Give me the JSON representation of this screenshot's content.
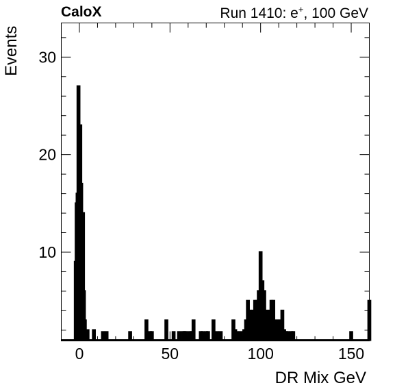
{
  "header": {
    "left_label": "CaloX",
    "right_label_prefix": "Run 1410: e",
    "right_label_sup": "+",
    "right_label_suffix": ", 100 GeV"
  },
  "chart_data": {
    "type": "bar",
    "xlabel": "DR Mix GeV",
    "ylabel": "Events",
    "xlim": [
      -10,
      160
    ],
    "ylim": [
      0.9,
      33.5
    ],
    "x_ticks": [
      0,
      50,
      100,
      150
    ],
    "y_ticks": [
      10,
      20,
      30
    ],
    "bins": [
      {
        "x": -2,
        "y": 9
      },
      {
        "x": -1.5,
        "y": 15
      },
      {
        "x": -1,
        "y": 16
      },
      {
        "x": -0.5,
        "y": 27
      },
      {
        "x": 0,
        "y": 14
      },
      {
        "x": 0.5,
        "y": 23
      },
      {
        "x": 1,
        "y": 17
      },
      {
        "x": 1.5,
        "y": 12
      },
      {
        "x": 2,
        "y": 14
      },
      {
        "x": 2.5,
        "y": 6
      },
      {
        "x": 3,
        "y": 3
      },
      {
        "x": 4.5,
        "y": 2
      },
      {
        "x": 8,
        "y": 2
      },
      {
        "x": 13,
        "y": 1.8
      },
      {
        "x": 15,
        "y": 1.8
      },
      {
        "x": 28,
        "y": 1.8
      },
      {
        "x": 37,
        "y": 3
      },
      {
        "x": 39,
        "y": 1.8
      },
      {
        "x": 40,
        "y": 1.8
      },
      {
        "x": 48,
        "y": 3
      },
      {
        "x": 52,
        "y": 1.8
      },
      {
        "x": 55,
        "y": 1.8
      },
      {
        "x": 57,
        "y": 1.8
      },
      {
        "x": 58,
        "y": 1.8
      },
      {
        "x": 59,
        "y": 1.8
      },
      {
        "x": 61,
        "y": 1.8
      },
      {
        "x": 62,
        "y": 1.8
      },
      {
        "x": 63,
        "y": 3
      },
      {
        "x": 67,
        "y": 1.8
      },
      {
        "x": 68,
        "y": 1.8
      },
      {
        "x": 70,
        "y": 1.8
      },
      {
        "x": 71,
        "y": 1.8
      },
      {
        "x": 74,
        "y": 3
      },
      {
        "x": 76,
        "y": 1.8
      },
      {
        "x": 78,
        "y": 1.8
      },
      {
        "x": 85,
        "y": 3
      },
      {
        "x": 86,
        "y": 2
      },
      {
        "x": 87,
        "y": 1.8
      },
      {
        "x": 89,
        "y": 1.8
      },
      {
        "x": 91,
        "y": 2
      },
      {
        "x": 92,
        "y": 3
      },
      {
        "x": 93,
        "y": 5
      },
      {
        "x": 94,
        "y": 4
      },
      {
        "x": 95,
        "y": 3
      },
      {
        "x": 96,
        "y": 4
      },
      {
        "x": 97,
        "y": 5
      },
      {
        "x": 98,
        "y": 5
      },
      {
        "x": 99,
        "y": 6
      },
      {
        "x": 100,
        "y": 10
      },
      {
        "x": 101,
        "y": 7
      },
      {
        "x": 102,
        "y": 6
      },
      {
        "x": 103,
        "y": 3
      },
      {
        "x": 104,
        "y": 4
      },
      {
        "x": 105,
        "y": 3
      },
      {
        "x": 106,
        "y": 5
      },
      {
        "x": 107,
        "y": 5
      },
      {
        "x": 108,
        "y": 2
      },
      {
        "x": 109,
        "y": 3
      },
      {
        "x": 110,
        "y": 2
      },
      {
        "x": 111,
        "y": 3
      },
      {
        "x": 112,
        "y": 4
      },
      {
        "x": 113,
        "y": 2
      },
      {
        "x": 114,
        "y": 1.8
      },
      {
        "x": 115,
        "y": 1.8
      },
      {
        "x": 117,
        "y": 1.8
      },
      {
        "x": 118,
        "y": 1.8
      },
      {
        "x": 150,
        "y": 1.8
      },
      {
        "x": 160,
        "y": 5
      }
    ]
  }
}
